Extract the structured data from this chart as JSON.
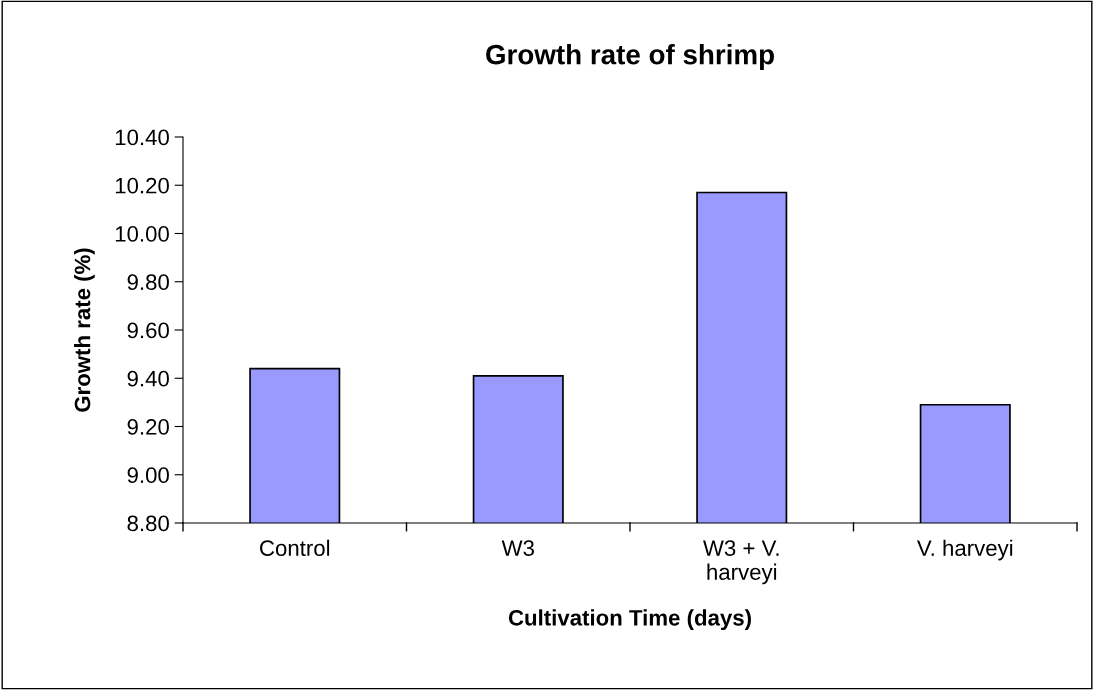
{
  "chart_data": {
    "type": "bar",
    "title": "Growth rate of shrimp",
    "xlabel": "Cultivation Time (days)",
    "ylabel": "Growth rate (%)",
    "categories": [
      "Control",
      "W3",
      "W3 + V.\nharveyi",
      "V. harveyi"
    ],
    "values": [
      9.44,
      9.41,
      10.17,
      9.29
    ],
    "color": "#9999ff",
    "ylim": [
      8.8,
      10.4
    ],
    "yticks": [
      {
        "value": 8.8,
        "label": "8.80"
      },
      {
        "value": 9.0,
        "label": "9.00"
      },
      {
        "value": 9.2,
        "label": "9.20"
      },
      {
        "value": 9.4,
        "label": "9.40"
      },
      {
        "value": 9.6,
        "label": "9.60"
      },
      {
        "value": 9.8,
        "label": "9.80"
      },
      {
        "value": 10.0,
        "label": "10.00"
      },
      {
        "value": 10.2,
        "label": "10.20"
      },
      {
        "value": 10.4,
        "label": "10.40"
      }
    ],
    "grid": false,
    "legend": false
  }
}
